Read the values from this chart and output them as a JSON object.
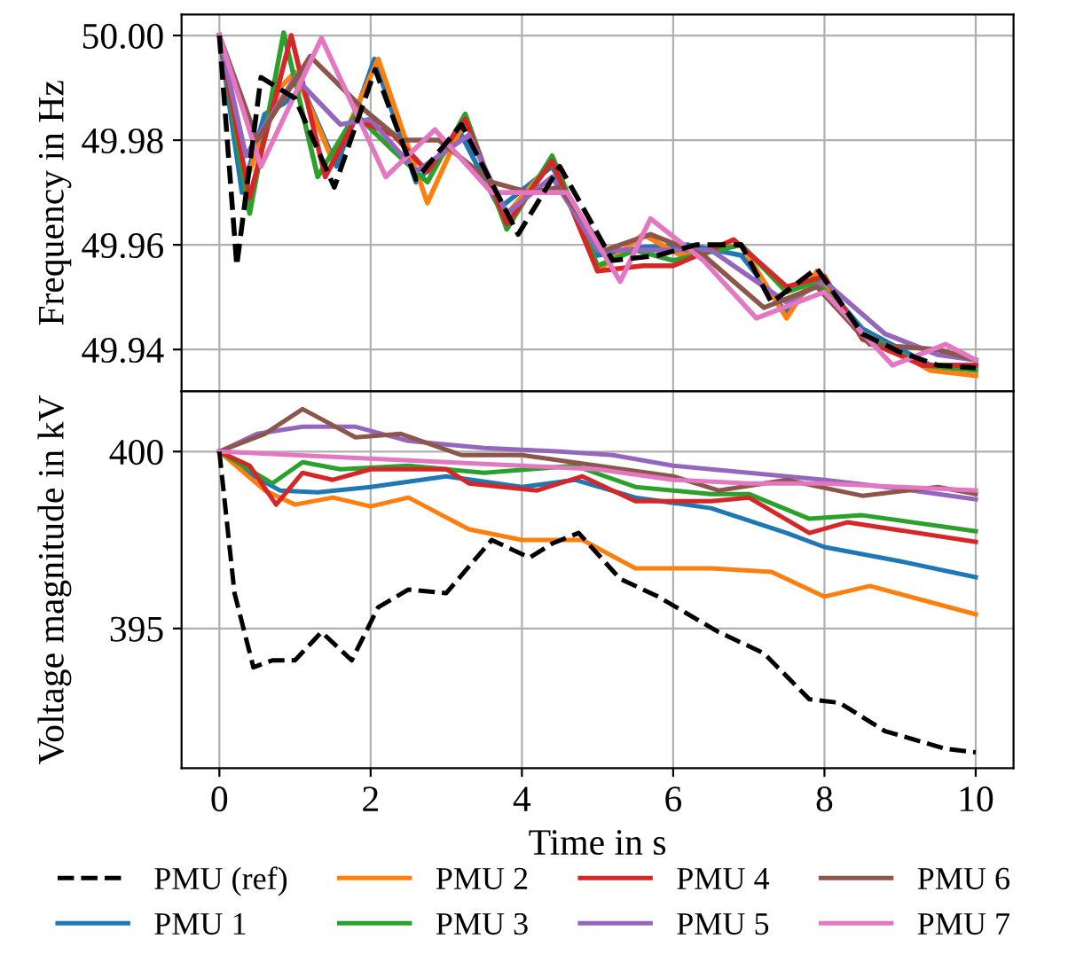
{
  "chart_data": [
    {
      "type": "line",
      "ylabel": "Frequency in Hz",
      "xlim": [
        -0.5,
        10.5
      ],
      "xticks": [
        0,
        2,
        4,
        6,
        8,
        10
      ],
      "ylim": [
        49.932,
        50.004
      ],
      "yticks": [
        {
          "value": 49.94,
          "label": "49.94"
        },
        {
          "value": 49.96,
          "label": "49.96"
        },
        {
          "value": 49.98,
          "label": "49.98"
        },
        {
          "value": 50.0,
          "label": "50.00"
        }
      ],
      "grid": true,
      "tick_labels": "y",
      "legend": false,
      "series": [
        {
          "color": "#000000",
          "line_style": "dashed",
          "x": [
            0,
            0.23,
            0.55,
            1.0,
            1.52,
            2.06,
            2.6,
            3.2,
            3.95,
            4.5,
            5.2,
            5.8,
            6.3,
            6.9,
            7.3,
            7.9,
            8.5,
            9.0,
            9.5,
            10
          ],
          "values": [
            50.0,
            49.956,
            49.992,
            49.988,
            49.971,
            49.9935,
            49.9725,
            49.983,
            49.962,
            49.975,
            49.957,
            49.958,
            49.96,
            49.96,
            49.949,
            49.9555,
            49.943,
            49.9395,
            49.937,
            49.9365
          ]
        },
        {
          "color": "#1f77b4",
          "x": [
            0,
            0.3,
            0.6,
            0.85,
            1.1,
            1.55,
            2.05,
            2.6,
            3.2,
            3.7,
            4.4,
            5.0,
            5.6,
            6.2,
            6.9,
            7.5,
            7.9,
            8.5,
            9.4,
            10
          ],
          "values": [
            50.0,
            49.97,
            49.985,
            49.987,
            49.99,
            49.975,
            49.9955,
            49.972,
            49.981,
            49.967,
            49.975,
            49.958,
            49.9595,
            49.96,
            49.958,
            49.947,
            49.954,
            49.944,
            49.937,
            49.937
          ]
        },
        {
          "color": "#ff7f0e",
          "x": [
            0,
            0.35,
            0.8,
            1.0,
            1.5,
            2.1,
            2.75,
            3.25,
            3.75,
            4.4,
            5.0,
            5.6,
            6.1,
            6.9,
            7.5,
            7.9,
            8.4,
            9.4,
            10
          ],
          "values": [
            50.0,
            49.972,
            49.99,
            49.993,
            49.976,
            49.9955,
            49.968,
            49.984,
            49.965,
            49.976,
            49.955,
            49.962,
            49.958,
            49.96,
            49.946,
            49.955,
            49.944,
            49.936,
            49.935
          ]
        },
        {
          "color": "#2ca02c",
          "x": [
            0,
            0.4,
            0.85,
            1.3,
            1.8,
            2.3,
            2.75,
            3.25,
            3.8,
            4.4,
            5.0,
            5.5,
            6.0,
            6.9,
            7.5,
            7.9,
            8.5,
            9.3,
            10
          ],
          "values": [
            50.0,
            49.966,
            50.0005,
            49.973,
            49.985,
            49.978,
            49.972,
            49.985,
            49.963,
            49.977,
            49.956,
            49.959,
            49.957,
            49.96,
            49.951,
            49.953,
            49.943,
            49.937,
            49.936
          ]
        },
        {
          "color": "#d62728",
          "x": [
            0,
            0.4,
            0.95,
            1.4,
            1.8,
            2.3,
            2.75,
            3.25,
            3.8,
            4.4,
            5.0,
            5.6,
            6.0,
            6.8,
            7.5,
            8.0,
            8.5,
            9.3,
            10
          ],
          "values": [
            50.0,
            49.969,
            50.0,
            49.973,
            49.984,
            49.981,
            49.974,
            49.984,
            49.964,
            49.976,
            49.955,
            49.956,
            49.956,
            49.961,
            49.952,
            49.954,
            49.942,
            49.937,
            49.937
          ]
        },
        {
          "color": "#9467bd",
          "x": [
            0,
            0.35,
            1.0,
            1.6,
            2.0,
            2.6,
            3.3,
            3.8,
            4.4,
            5.0,
            6.0,
            6.5,
            7.5,
            8.0,
            8.8,
            9.5,
            10
          ],
          "values": [
            50.0,
            49.977,
            49.992,
            49.983,
            49.984,
            49.974,
            49.981,
            49.966,
            49.973,
            49.959,
            49.959,
            49.959,
            49.949,
            49.953,
            49.943,
            49.939,
            49.938
          ]
        },
        {
          "color": "#8c564b",
          "x": [
            0,
            0.5,
            1.2,
            1.9,
            2.4,
            2.9,
            3.6,
            4.1,
            4.5,
            5.1,
            5.7,
            6.4,
            7.2,
            7.9,
            8.6,
            9.5,
            10
          ],
          "values": [
            50.0,
            49.98,
            49.996,
            49.986,
            49.98,
            49.98,
            49.972,
            49.97,
            49.971,
            49.959,
            49.962,
            49.958,
            49.948,
            49.952,
            49.941,
            49.94,
            49.938
          ]
        },
        {
          "color": "#e377c2",
          "x": [
            0,
            0.55,
            1.35,
            2.2,
            2.85,
            3.6,
            4.0,
            4.6,
            5.3,
            5.7,
            6.4,
            7.1,
            8.0,
            8.9,
            9.6,
            10
          ],
          "values": [
            50.0,
            49.975,
            49.9995,
            49.973,
            49.982,
            49.97,
            49.97,
            49.97,
            49.953,
            49.965,
            49.957,
            49.946,
            49.951,
            49.937,
            49.941,
            49.938
          ]
        }
      ]
    },
    {
      "type": "line",
      "xlabel": "Time in s",
      "ylabel": "Voltage magnitude in kV",
      "xlim": [
        -0.5,
        10.5
      ],
      "xticks": [
        0,
        2,
        4,
        6,
        8,
        10
      ],
      "ylim": [
        391.05,
        401.7
      ],
      "yticks": [
        395,
        400
      ],
      "grid": true,
      "legend": "bottom",
      "series": [
        {
          "name": "PMU (ref)",
          "color": "#000000",
          "line_style": "dashed",
          "x": [
            0,
            0.2,
            0.45,
            0.7,
            1.0,
            1.35,
            1.75,
            2.1,
            2.5,
            3.0,
            3.6,
            4.1,
            4.4,
            4.75,
            5.3,
            5.8,
            6.6,
            7.2,
            7.8,
            8.2,
            8.8,
            9.6,
            10
          ],
          "values": [
            400,
            396,
            393.9,
            394.1,
            394.1,
            394.9,
            394.1,
            395.6,
            396.1,
            396.0,
            397.5,
            397.0,
            397.4,
            397.7,
            396.4,
            395.9,
            394.9,
            394.3,
            393.0,
            392.9,
            392.1,
            391.6,
            391.5
          ]
        },
        {
          "name": "PMU 1",
          "color": "#1f77b4",
          "x": [
            0,
            0.3,
            0.8,
            1.3,
            2.0,
            3.0,
            4.0,
            4.7,
            5.5,
            6.5,
            7.5,
            8.0,
            9.0,
            10
          ],
          "values": [
            400,
            399.5,
            398.9,
            398.85,
            399.0,
            399.3,
            399.0,
            399.2,
            398.7,
            398.4,
            397.7,
            397.3,
            396.9,
            396.45
          ]
        },
        {
          "name": "PMU 2",
          "color": "#ff7f0e",
          "x": [
            0,
            0.6,
            1.0,
            1.5,
            2.0,
            2.5,
            3.3,
            4.0,
            4.8,
            5.5,
            6.5,
            7.3,
            8.0,
            8.6,
            10
          ],
          "values": [
            400,
            398.9,
            398.5,
            398.7,
            398.45,
            398.7,
            397.8,
            397.5,
            397.5,
            396.7,
            396.7,
            396.6,
            395.9,
            396.2,
            395.4
          ]
        },
        {
          "name": "PMU 3",
          "color": "#2ca02c",
          "x": [
            0,
            0.7,
            1.1,
            1.6,
            2.5,
            3.5,
            4.7,
            5.5,
            6.5,
            7.0,
            7.8,
            8.5,
            10
          ],
          "values": [
            400,
            399.1,
            399.7,
            399.5,
            399.6,
            399.4,
            399.6,
            399.0,
            398.8,
            398.8,
            398.1,
            398.2,
            397.75
          ]
        },
        {
          "name": "PMU 4",
          "color": "#d62728",
          "x": [
            0,
            0.4,
            0.75,
            1.1,
            1.5,
            2.0,
            3.0,
            3.3,
            4.2,
            4.8,
            5.5,
            6.5,
            7.0,
            7.8,
            8.3,
            10
          ],
          "values": [
            400,
            399.6,
            398.5,
            399.4,
            399.2,
            399.5,
            399.5,
            399.1,
            398.9,
            399.3,
            398.6,
            398.6,
            398.7,
            397.7,
            398.0,
            397.45
          ]
        },
        {
          "name": "PMU 5",
          "color": "#9467bd",
          "x": [
            0,
            0.5,
            1.1,
            1.8,
            2.5,
            3.5,
            4.5,
            5.2,
            6.0,
            7.0,
            8.0,
            9.0,
            10
          ],
          "values": [
            400,
            400.5,
            400.7,
            400.7,
            400.3,
            400.1,
            400.0,
            399.9,
            399.6,
            399.4,
            399.2,
            398.95,
            398.65
          ]
        },
        {
          "name": "PMU 6",
          "color": "#8c564b",
          "x": [
            0,
            0.6,
            1.1,
            1.8,
            2.4,
            3.2,
            4.0,
            5.0,
            6.0,
            6.6,
            7.5,
            8.5,
            9.5,
            10
          ],
          "values": [
            400,
            400.5,
            401.2,
            400.4,
            400.5,
            399.9,
            399.9,
            399.6,
            399.3,
            398.9,
            399.2,
            398.75,
            399.0,
            398.8
          ]
        },
        {
          "name": "PMU 7",
          "color": "#e377c2",
          "x": [
            0,
            1.0,
            2.0,
            3.0,
            4.0,
            5.0,
            6.0,
            7.0,
            8.0,
            9.0,
            10
          ],
          "values": [
            400,
            399.9,
            399.8,
            399.7,
            399.6,
            399.5,
            399.2,
            399.1,
            399.1,
            399.0,
            398.9
          ]
        }
      ]
    }
  ]
}
